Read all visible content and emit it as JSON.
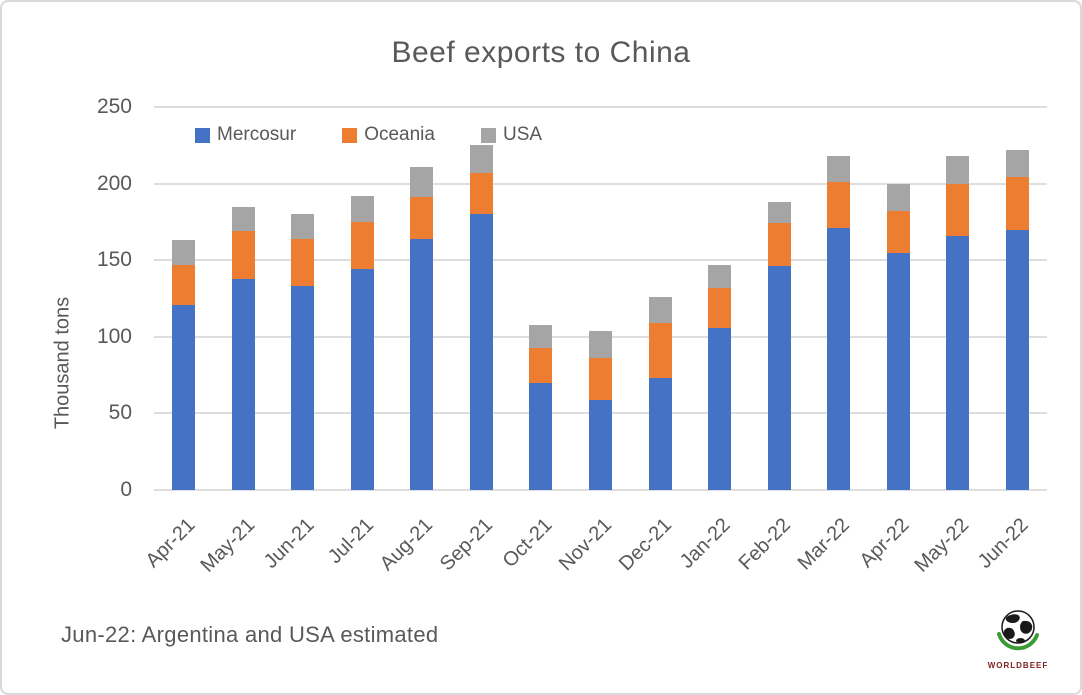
{
  "title": "Beef exports to China",
  "y_axis": {
    "label": "Thousand tons",
    "ticks": [
      0,
      50,
      100,
      150,
      200,
      250
    ]
  },
  "legend": [
    {
      "label": "Mercosur",
      "color": "#4472C4"
    },
    {
      "label": "Oceania",
      "color": "#ED7D31"
    },
    {
      "label": "USA",
      "color": "#A5A5A5"
    }
  ],
  "footnote": "Jun-22: Argentina and USA estimated",
  "logo": {
    "text": "WORLDBEEF"
  },
  "colors": {
    "mercosur": "#4472C4",
    "oceania": "#ED7D31",
    "usa": "#A5A5A5",
    "text": "#595959",
    "gridline": "#dedede",
    "logo_green": "#3d9b35",
    "logo_text": "#7b1f1f"
  },
  "chart_data": {
    "type": "bar",
    "stacked": true,
    "title": "Beef exports to China",
    "ylabel": "Thousand tons",
    "xlabel": "",
    "ylim": [
      0,
      250
    ],
    "grid": true,
    "legend_position": "top-left",
    "categories": [
      "Apr-21",
      "May-21",
      "Jun-21",
      "Jul-21",
      "Aug-21",
      "Sep-21",
      "Oct-21",
      "Nov-21",
      "Dec-21",
      "Jan-22",
      "Feb-22",
      "Mar-22",
      "Apr-22",
      "May-22",
      "Jun-22"
    ],
    "series": [
      {
        "name": "Mercosur",
        "color": "#4472C4",
        "values": [
          121,
          138,
          133,
          144,
          164,
          180,
          70,
          59,
          73,
          106,
          146,
          171,
          155,
          166,
          170
        ]
      },
      {
        "name": "Oceania",
        "color": "#ED7D31",
        "values": [
          26,
          31,
          31,
          31,
          27,
          27,
          23,
          27,
          36,
          26,
          28,
          30,
          27,
          34,
          34
        ]
      },
      {
        "name": "USA",
        "color": "#A5A5A5",
        "values": [
          16,
          16,
          16,
          17,
          20,
          18,
          15,
          18,
          17,
          15,
          14,
          17,
          18,
          18,
          18
        ]
      }
    ],
    "totals": [
      163,
      185,
      180,
      192,
      211,
      225,
      108,
      104,
      126,
      147,
      188,
      218,
      200,
      218,
      222
    ]
  }
}
